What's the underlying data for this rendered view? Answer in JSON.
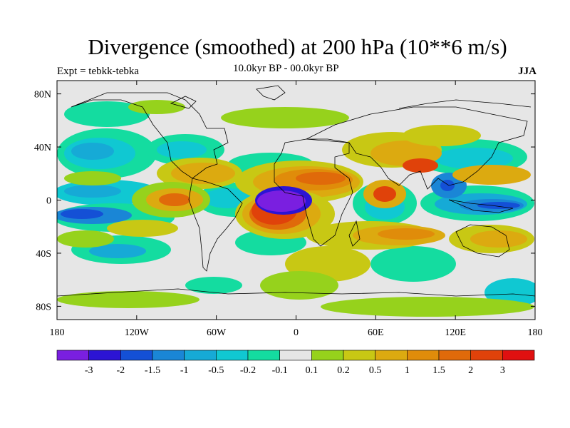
{
  "title": "Divergence (smoothed) at 200 hPa (10**6 m/s)",
  "subtitle_left": "Expt = tebkk-tebka",
  "subtitle_center": "10.0kyr BP - 00.0kyr BP",
  "subtitle_right": "JJA",
  "map": {
    "lon_range": [
      -180,
      180
    ],
    "lat_range": [
      -90,
      90
    ],
    "lat_ticks": [
      {
        "value": 80,
        "label": "80N"
      },
      {
        "value": 40,
        "label": "40N"
      },
      {
        "value": 0,
        "label": "0"
      },
      {
        "value": -40,
        "label": "40S"
      },
      {
        "value": -80,
        "label": "80S"
      }
    ],
    "lon_ticks": [
      {
        "value": -180,
        "label": "180"
      },
      {
        "value": -120,
        "label": "120W"
      },
      {
        "value": -60,
        "label": "60W"
      },
      {
        "value": 0,
        "label": "0"
      },
      {
        "value": 60,
        "label": "60E"
      },
      {
        "value": 120,
        "label": "120E"
      },
      {
        "value": 180,
        "label": "180"
      }
    ]
  },
  "colorbar": {
    "colors": [
      "#7a1fe0",
      "#2c14d4",
      "#1450d6",
      "#1a86d6",
      "#16aad6",
      "#10c8d2",
      "#14dca0",
      "#e6e6e6",
      "#96d21c",
      "#c8c814",
      "#dcaa10",
      "#e08c0a",
      "#e06a0a",
      "#e0420a",
      "#e01010"
    ],
    "labels": [
      "-3",
      "-2",
      "-1.5",
      "-1",
      "-0.5",
      "-0.2",
      "-0.1",
      "0.1",
      "0.2",
      "0.5",
      "1",
      "1.5",
      "2",
      "3"
    ]
  }
}
